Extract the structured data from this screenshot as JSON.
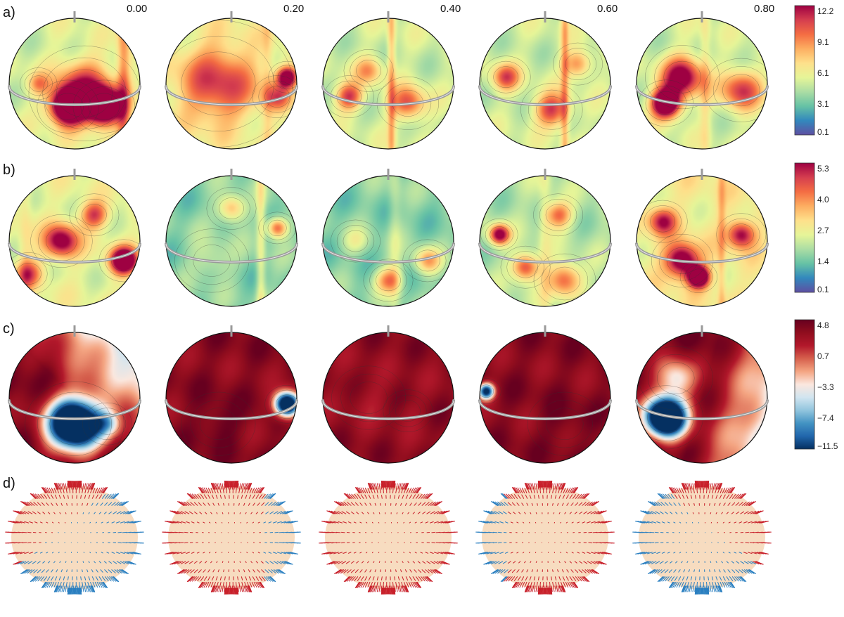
{
  "phases": [
    "0.00",
    "0.20",
    "0.40",
    "0.60",
    "0.80"
  ],
  "rows": [
    {
      "label": "a)",
      "colormap": "spectral",
      "colorbar_ticks": [
        "12.2",
        "9.1",
        "6.1",
        "3.1",
        "0.1"
      ],
      "spheres": [
        {
          "blobs": [
            [
              -0.1,
              0.35,
              0.25,
              0.95
            ],
            [
              0.45,
              0.35,
              0.25,
              1.0
            ],
            [
              0.15,
              0.15,
              0.45,
              0.6
            ],
            [
              -0.55,
              0.0,
              0.15,
              0.25
            ]
          ],
          "band": [
            0.75,
            0.1,
            0.3
          ],
          "base": 0.42
        },
        {
          "blobs": [
            [
              0.85,
              -0.1,
              0.15,
              0.75
            ],
            [
              -0.2,
              0.0,
              0.6,
              0.45
            ],
            [
              0.7,
              0.2,
              0.2,
              0.35
            ]
          ],
          "band": [
            0.55,
            0.08,
            0.1
          ],
          "base": 0.45
        },
        {
          "blobs": [
            [
              -0.3,
              -0.2,
              0.2,
              0.3
            ],
            [
              0.3,
              0.3,
              0.25,
              0.45
            ],
            [
              -0.6,
              0.2,
              0.2,
              0.5
            ]
          ],
          "band": [
            0.05,
            0.06,
            0.25
          ],
          "base": 0.4
        },
        {
          "blobs": [
            [
              0.1,
              0.4,
              0.25,
              0.5
            ],
            [
              -0.6,
              -0.1,
              0.2,
              0.45
            ],
            [
              0.5,
              -0.3,
              0.2,
              0.35
            ]
          ],
          "band": [
            0.3,
            0.06,
            0.25
          ],
          "base": 0.4
        },
        {
          "blobs": [
            [
              -0.55,
              0.3,
              0.22,
              1.0
            ],
            [
              -0.3,
              -0.1,
              0.3,
              0.7
            ],
            [
              0.6,
              0.1,
              0.3,
              0.5
            ]
          ],
          "band": [
            0.05,
            0.08,
            0.12
          ],
          "base": 0.4
        }
      ]
    },
    {
      "label": "b)",
      "colormap": "spectral",
      "colorbar_ticks": [
        "5.3",
        "4.0",
        "2.7",
        "1.4",
        "0.1"
      ],
      "spheres": [
        {
          "blobs": [
            [
              0.75,
              0.3,
              0.2,
              0.9
            ],
            [
              -0.2,
              0.0,
              0.25,
              0.65
            ],
            [
              0.3,
              -0.4,
              0.2,
              0.45
            ],
            [
              -0.7,
              0.5,
              0.2,
              0.4
            ]
          ],
          "band": [
            -0.75,
            0.1,
            0.1
          ],
          "base": 0.45
        },
        {
          "blobs": [
            [
              0.7,
              -0.2,
              0.15,
              0.55
            ],
            [
              -0.3,
              0.3,
              0.3,
              0.15
            ],
            [
              0.0,
              -0.5,
              0.2,
              0.4
            ]
          ],
          "band": [
            0.45,
            0.07,
            0.2
          ],
          "base": 0.28
        },
        {
          "blobs": [
            [
              0.0,
              0.6,
              0.2,
              0.45
            ],
            [
              -0.5,
              0.0,
              0.2,
              0.15
            ],
            [
              0.6,
              0.3,
              0.2,
              0.4
            ]
          ],
          "band": [
            0.1,
            0.1,
            0.1
          ],
          "base": 0.28
        },
        {
          "blobs": [
            [
              -0.7,
              -0.1,
              0.15,
              0.75
            ],
            [
              0.2,
              -0.4,
              0.2,
              0.45
            ],
            [
              0.3,
              0.6,
              0.25,
              0.5
            ],
            [
              -0.3,
              0.4,
              0.2,
              0.55
            ]
          ],
          "band": [
            0.0,
            0.1,
            0.1
          ],
          "base": 0.35
        },
        {
          "blobs": [
            [
              -0.05,
              0.55,
              0.15,
              1.0
            ],
            [
              -0.3,
              0.3,
              0.25,
              0.7
            ],
            [
              0.6,
              -0.1,
              0.2,
              0.55
            ],
            [
              -0.6,
              -0.3,
              0.2,
              0.5
            ]
          ],
          "band": [
            0.3,
            0.06,
            0.15
          ],
          "base": 0.5
        }
      ]
    },
    {
      "label": "c)",
      "colormap": "diverging",
      "colorbar_ticks": [
        "4.8",
        "0.7",
        "−3.3",
        "−7.4",
        "−11.5"
      ],
      "spheres": [
        {
          "blobs": [
            [
              0.0,
              0.4,
              0.4,
              -1.6
            ],
            [
              0.5,
              0.4,
              0.2,
              -0.4
            ]
          ],
          "band": [
            -1.0,
            0.0,
            0.0
          ],
          "base": 0.95,
          "tilt": [
            0.55,
            -0.55
          ]
        },
        {
          "blobs": [
            [
              0.85,
              0.1,
              0.18,
              -1.4
            ],
            [
              -0.2,
              0.4,
              0.3,
              0.1
            ]
          ],
          "band": [
            0,
            0,
            0
          ],
          "base": 0.92
        },
        {
          "blobs": [
            [
              -0.3,
              0.0,
              0.3,
              -0.08
            ],
            [
              0.3,
              0.2,
              0.2,
              -0.06
            ]
          ],
          "band": [
            0,
            0,
            0
          ],
          "base": 0.9
        },
        {
          "blobs": [
            [
              -0.9,
              -0.1,
              0.12,
              -1.0
            ],
            [
              0.3,
              0.4,
              0.3,
              0.06
            ]
          ],
          "band": [
            0,
            0,
            0
          ],
          "base": 0.92
        },
        {
          "blobs": [
            [
              -0.55,
              0.3,
              0.3,
              -1.7
            ],
            [
              -0.4,
              -0.3,
              0.3,
              -0.5
            ]
          ],
          "band": [
            0,
            0,
            0
          ],
          "base": 0.95,
          "tilt": [
            0.7,
            0.2
          ]
        }
      ]
    },
    {
      "label": "d)",
      "colormap": "vectors",
      "spheres": [
        {
          "blue_side": "lower-right",
          "blue_fraction": 0.6
        },
        {
          "blue_side": "right",
          "blue_fraction": 0.25
        },
        {
          "blue_side": "none",
          "blue_fraction": 0.0
        },
        {
          "blue_side": "left",
          "blue_fraction": 0.2
        },
        {
          "blue_side": "lower-left",
          "blue_fraction": 0.55
        }
      ]
    }
  ],
  "colors": {
    "spectral": [
      "#5e4fa2",
      "#3288bd",
      "#66c2a5",
      "#abdda4",
      "#e6f598",
      "#fee08b",
      "#fdae61",
      "#f46d43",
      "#d53e4f",
      "#9e0142"
    ],
    "diverging": [
      "#053061",
      "#2166ac",
      "#4393c3",
      "#92c5de",
      "#d1e5f0",
      "#fbe7de",
      "#f4a582",
      "#d6604d",
      "#b2182b",
      "#900d1e",
      "#67001f"
    ],
    "vector_red": "#c8202a",
    "vector_blue": "#2a7fc0",
    "vector_fill": "#f7dcc0",
    "ring": "#9a9a9a"
  }
}
